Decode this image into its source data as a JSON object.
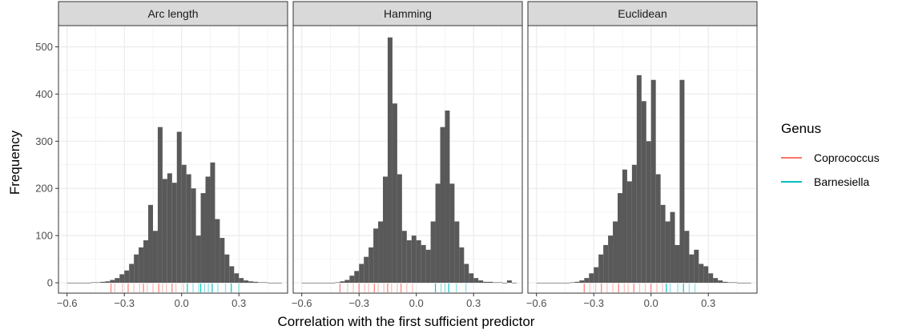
{
  "chart_data": {
    "type": "bar",
    "xlabel": "Correlation with the first sufficient predictor",
    "ylabel": "Frequency",
    "x_ticks": [
      -0.6,
      -0.3,
      0.0,
      0.3
    ],
    "x_tick_labels": [
      "−0.6",
      "−0.3",
      "0.0",
      "0.3"
    ],
    "y_ticks": [
      0,
      100,
      200,
      300,
      400,
      500
    ],
    "y_tick_labels": [
      "0",
      "100",
      "200",
      "300",
      "400",
      "500"
    ],
    "xlim": [
      -0.645,
      0.555
    ],
    "ylim": [
      -22,
      545
    ],
    "bin_width": 0.025,
    "bar_color": "#595959",
    "legend": {
      "title": "Genus",
      "placement": "right",
      "items": [
        {
          "label": "Coprococcus",
          "color": "#F8766D"
        },
        {
          "label": "Barnesiella",
          "color": "#00BFC4"
        }
      ]
    },
    "panels": [
      {
        "strip": "Arc length",
        "bin_starts": [
          -0.6,
          -0.575,
          -0.55,
          -0.525,
          -0.5,
          -0.475,
          -0.45,
          -0.425,
          -0.4,
          -0.375,
          -0.35,
          -0.325,
          -0.3,
          -0.275,
          -0.25,
          -0.225,
          -0.2,
          -0.175,
          -0.15,
          -0.125,
          -0.1,
          -0.075,
          -0.05,
          -0.025,
          0.0,
          0.025,
          0.05,
          0.075,
          0.1,
          0.125,
          0.15,
          0.175,
          0.2,
          0.225,
          0.25,
          0.275,
          0.3,
          0.325,
          0.35,
          0.375,
          0.4,
          0.425,
          0.45,
          0.475,
          0.5
        ],
        "counts": [
          0,
          0,
          0,
          0,
          0,
          1,
          1,
          2,
          3,
          6,
          10,
          18,
          26,
          40,
          60,
          75,
          90,
          165,
          110,
          330,
          220,
          232,
          212,
          320,
          250,
          230,
          200,
          100,
          190,
          225,
          255,
          135,
          95,
          60,
          35,
          20,
          10,
          5,
          3,
          2,
          1,
          1,
          0,
          0,
          0
        ],
        "rug": {
          "Coprococcus": [
            -0.37,
            -0.35,
            -0.31,
            -0.28,
            -0.25,
            -0.22,
            -0.2,
            -0.18,
            -0.15,
            -0.12,
            -0.1,
            -0.08,
            -0.05,
            -0.03,
            0.01
          ],
          "Barnesiella": [
            0.03,
            0.06,
            0.09,
            0.1,
            0.12,
            0.14,
            0.16,
            0.19,
            0.23,
            0.26,
            0.3
          ]
        }
      },
      {
        "strip": "Hamming",
        "bin_starts": [
          -0.6,
          -0.575,
          -0.55,
          -0.525,
          -0.5,
          -0.475,
          -0.45,
          -0.425,
          -0.4,
          -0.375,
          -0.35,
          -0.325,
          -0.3,
          -0.275,
          -0.25,
          -0.225,
          -0.2,
          -0.175,
          -0.15,
          -0.125,
          -0.1,
          -0.075,
          -0.05,
          -0.025,
          0.0,
          0.025,
          0.05,
          0.075,
          0.1,
          0.125,
          0.15,
          0.175,
          0.2,
          0.225,
          0.25,
          0.275,
          0.3,
          0.325,
          0.35,
          0.375,
          0.4,
          0.425,
          0.45,
          0.475,
          0.5
        ],
        "counts": [
          0,
          0,
          0,
          0,
          0,
          0,
          0,
          1,
          3,
          6,
          15,
          25,
          40,
          55,
          75,
          115,
          130,
          225,
          520,
          380,
          230,
          110,
          90,
          100,
          90,
          80,
          70,
          130,
          210,
          330,
          365,
          210,
          130,
          75,
          40,
          20,
          10,
          5,
          2,
          2,
          1,
          1,
          0,
          5,
          0
        ],
        "rug": {
          "Coprococcus": [
            -0.4,
            -0.36,
            -0.33,
            -0.3,
            -0.27,
            -0.25,
            -0.22,
            -0.2,
            -0.17,
            -0.15,
            -0.13,
            -0.1,
            -0.08,
            -0.05,
            -0.02
          ],
          "Barnesiella": [
            0.1,
            0.13,
            0.15,
            0.17,
            0.21,
            0.26
          ]
        }
      },
      {
        "strip": "Euclidean",
        "bin_starts": [
          -0.6,
          -0.575,
          -0.55,
          -0.525,
          -0.5,
          -0.475,
          -0.45,
          -0.425,
          -0.4,
          -0.375,
          -0.35,
          -0.325,
          -0.3,
          -0.275,
          -0.25,
          -0.225,
          -0.2,
          -0.175,
          -0.15,
          -0.125,
          -0.1,
          -0.075,
          -0.05,
          -0.025,
          0.0,
          0.025,
          0.05,
          0.075,
          0.1,
          0.125,
          0.15,
          0.175,
          0.2,
          0.225,
          0.25,
          0.275,
          0.3,
          0.325,
          0.35,
          0.375,
          0.4,
          0.425,
          0.45,
          0.475,
          0.5
        ],
        "counts": [
          0,
          0,
          0,
          0,
          0,
          0,
          0,
          1,
          2,
          5,
          10,
          20,
          33,
          60,
          80,
          100,
          130,
          190,
          240,
          215,
          250,
          440,
          385,
          300,
          430,
          230,
          165,
          130,
          150,
          80,
          430,
          110,
          60,
          70,
          40,
          35,
          20,
          10,
          5,
          2,
          1,
          1,
          0,
          0,
          0
        ],
        "rug": {
          "Coprococcus": [
            -0.35,
            -0.32,
            -0.29,
            -0.26,
            -0.23,
            -0.2,
            -0.17,
            -0.14,
            -0.12,
            -0.09,
            -0.06,
            -0.03,
            0.0,
            0.03,
            0.06
          ],
          "Barnesiella": [
            0.08,
            0.1,
            0.14,
            0.17,
            0.2,
            0.23
          ]
        }
      }
    ]
  }
}
